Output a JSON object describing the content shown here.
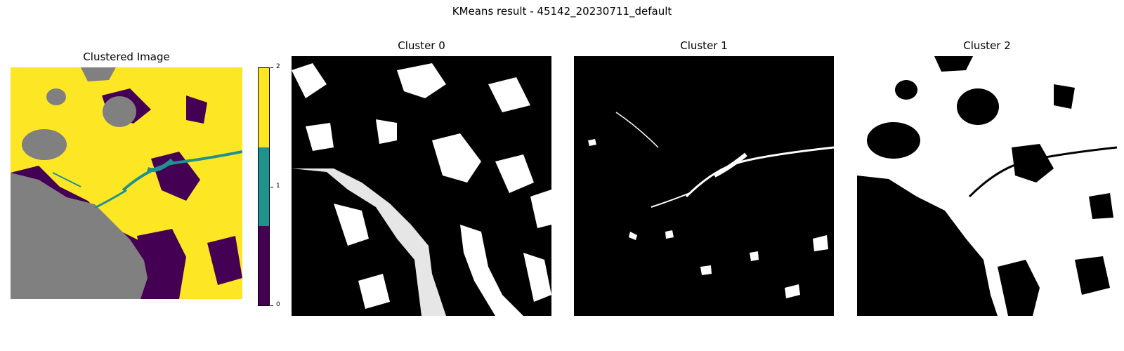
{
  "figure": {
    "suptitle": "KMeans result - 45142_20230711_default"
  },
  "panels": {
    "clustered": {
      "title": "Clustered Image"
    },
    "cluster0": {
      "title": "Cluster 0"
    },
    "cluster1": {
      "title": "Cluster 1"
    },
    "cluster2": {
      "title": "Cluster 2"
    }
  },
  "colorbar": {
    "ticks": [
      "2",
      "1",
      "0"
    ],
    "colors": {
      "cluster0": "#440154",
      "cluster1": "#21918c",
      "cluster2": "#fde725",
      "nodata": "#808080"
    }
  }
}
